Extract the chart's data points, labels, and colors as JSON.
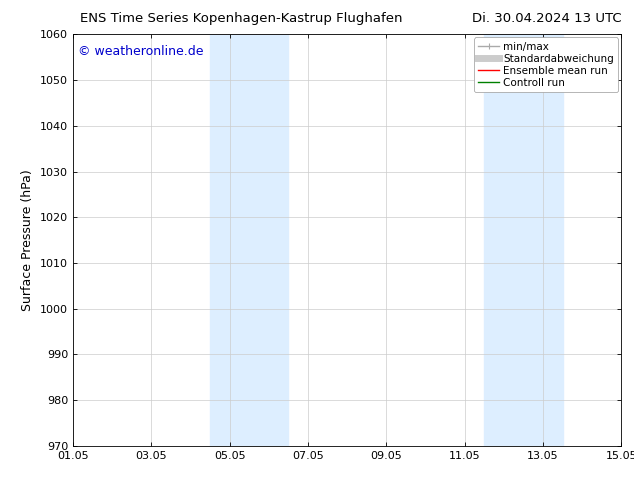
{
  "title_left": "ENS Time Series Kopenhagen-Kastrup Flughafen",
  "title_right": "Di. 30.04.2024 13 UTC",
  "ylabel": "Surface Pressure (hPa)",
  "ylim": [
    970,
    1060
  ],
  "yticks": [
    970,
    980,
    990,
    1000,
    1010,
    1020,
    1030,
    1040,
    1050,
    1060
  ],
  "xlim": [
    0,
    14
  ],
  "xtick_positions": [
    0,
    2,
    4,
    6,
    8,
    10,
    12,
    14
  ],
  "xtick_labels": [
    "01.05",
    "03.05",
    "05.05",
    "07.05",
    "09.05",
    "11.05",
    "13.05",
    "15.05"
  ],
  "watermark": "© weatheronline.de",
  "watermark_color": "#0000cc",
  "background_color": "#ffffff",
  "plot_bg_color": "#ffffff",
  "shade_regions": [
    {
      "xmin": 3.5,
      "xmax": 5.5,
      "color": "#ddeeff"
    },
    {
      "xmin": 10.5,
      "xmax": 12.5,
      "color": "#ddeeff"
    }
  ],
  "legend_entries": [
    {
      "label": "min/max",
      "color": "#aaaaaa",
      "linewidth": 1.0,
      "linestyle": "-"
    },
    {
      "label": "Standardabweichung",
      "color": "#cccccc",
      "linewidth": 5,
      "linestyle": "-"
    },
    {
      "label": "Ensemble mean run",
      "color": "#ff0000",
      "linewidth": 1.0,
      "linestyle": "-"
    },
    {
      "label": "Controll run",
      "color": "#008000",
      "linewidth": 1.0,
      "linestyle": "-"
    }
  ],
  "grid_color": "#cccccc",
  "title_fontsize": 9.5,
  "label_fontsize": 9,
  "tick_fontsize": 8,
  "watermark_fontsize": 9,
  "legend_fontsize": 7.5
}
